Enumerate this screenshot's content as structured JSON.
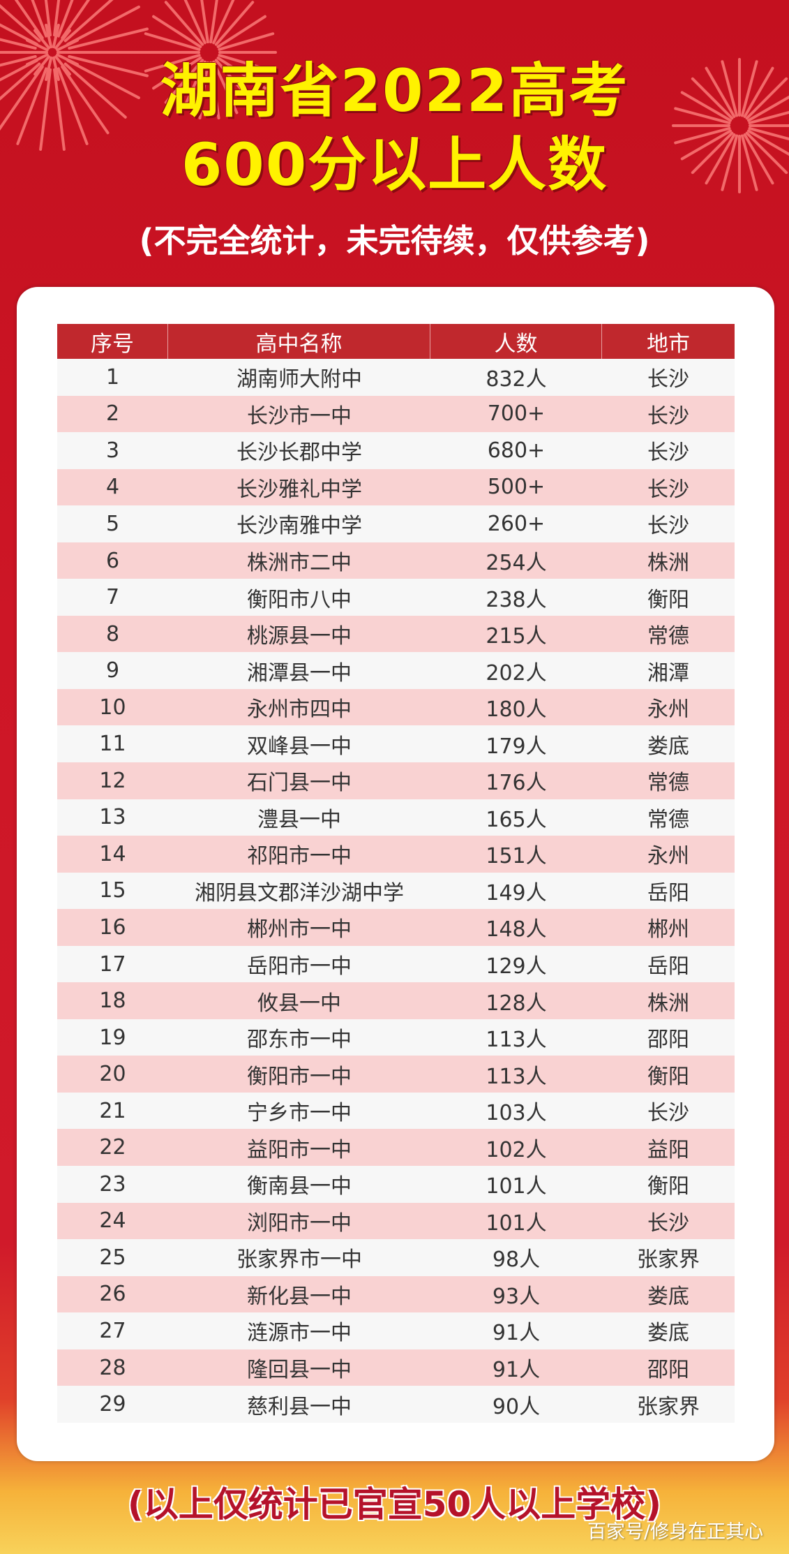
{
  "title_line1": "湖南省2022高考",
  "title_line2": "600分以上人数",
  "subtitle": "(不完全统计，未完待续，仅供参考)",
  "colors": {
    "background": "#c8102e",
    "title": "#fff200",
    "header": "#c0282d",
    "row_alt": "#f9d2d2"
  },
  "table": {
    "headers": [
      "序号",
      "高中名称",
      "人数",
      "地市"
    ],
    "rows": [
      [
        "1",
        "湖南师大附中",
        "832人",
        "长沙"
      ],
      [
        "2",
        "长沙市一中",
        "700+",
        "长沙"
      ],
      [
        "3",
        "长沙长郡中学",
        "680+",
        "长沙"
      ],
      [
        "4",
        "长沙雅礼中学",
        "500+",
        "长沙"
      ],
      [
        "5",
        "长沙南雅中学",
        "260+",
        "长沙"
      ],
      [
        "6",
        "株洲市二中",
        "254人",
        "株洲"
      ],
      [
        "7",
        "衡阳市八中",
        "238人",
        "衡阳"
      ],
      [
        "8",
        "桃源县一中",
        "215人",
        "常德"
      ],
      [
        "9",
        "湘潭县一中",
        "202人",
        "湘潭"
      ],
      [
        "10",
        "永州市四中",
        "180人",
        "永州"
      ],
      [
        "11",
        "双峰县一中",
        "179人",
        "娄底"
      ],
      [
        "12",
        "石门县一中",
        "176人",
        "常德"
      ],
      [
        "13",
        "澧县一中",
        "165人",
        "常德"
      ],
      [
        "14",
        "祁阳市一中",
        "151人",
        "永州"
      ],
      [
        "15",
        "湘阴县文郡洋沙湖中学",
        "149人",
        "岳阳"
      ],
      [
        "16",
        "郴州市一中",
        "148人",
        "郴州"
      ],
      [
        "17",
        "岳阳市一中",
        "129人",
        "岳阳"
      ],
      [
        "18",
        "攸县一中",
        "128人",
        "株洲"
      ],
      [
        "19",
        "邵东市一中",
        "113人",
        "邵阳"
      ],
      [
        "20",
        "衡阳市一中",
        "113人",
        "衡阳"
      ],
      [
        "21",
        "宁乡市一中",
        "103人",
        "长沙"
      ],
      [
        "22",
        "益阳市一中",
        "102人",
        "益阳"
      ],
      [
        "23",
        "衡南县一中",
        "101人",
        "衡阳"
      ],
      [
        "24",
        "浏阳市一中",
        "101人",
        "长沙"
      ],
      [
        "25",
        "张家界市一中",
        "98人",
        "张家界"
      ],
      [
        "26",
        "新化县一中",
        "93人",
        "娄底"
      ],
      [
        "27",
        "涟源市一中",
        "91人",
        "娄底"
      ],
      [
        "28",
        "隆回县一中",
        "91人",
        "邵阳"
      ],
      [
        "29",
        "慈利县一中",
        "90人",
        "张家界"
      ]
    ]
  },
  "footer_note": "(以上仅统计已官宣50人以上学校)",
  "watermark": "百家号/修身在正其心"
}
